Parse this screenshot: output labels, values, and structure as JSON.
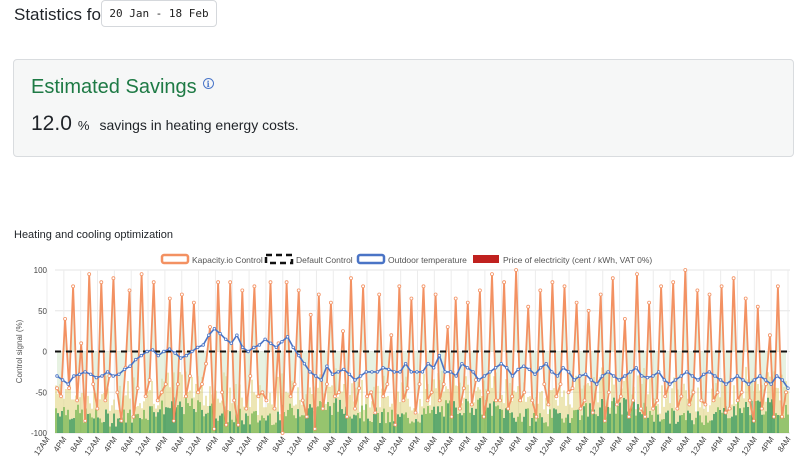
{
  "header": {
    "statistics_label": "Statistics for",
    "date_range": "20 Jan - 18 Feb"
  },
  "savings": {
    "title": "Estimated Savings",
    "info_icon": "info-circle-icon",
    "value": "12.0",
    "unit": "%",
    "text": "savings in heating energy costs."
  },
  "chart": {
    "section_title": "Heating and cooling optimization"
  },
  "colors": {
    "kapacity": "#f39162",
    "default": "#111111",
    "outdoor": "#4a74c6",
    "price": "#c0211f",
    "green_dark": "#1e8a3c",
    "green_mid": "#6dae3a",
    "yellow_band": "#d7c75a",
    "fill_zone": "#cfe6c6",
    "title_green": "#1e7a45"
  },
  "chart_data": {
    "type": "line",
    "ylabel": "Control signal (%)",
    "ylim": [
      -100,
      100
    ],
    "yticks": [
      100,
      50,
      0,
      -50,
      -100
    ],
    "x_ticks": [
      "12AM",
      "4PM",
      "8AM",
      "12AM",
      "4PM",
      "8AM",
      "12AM",
      "4PM",
      "8AM",
      "12AM",
      "4PM",
      "8AM",
      "12AM",
      "4PM",
      "8AM",
      "12AM",
      "4PM",
      "8AM",
      "12AM",
      "4PM",
      "8AM",
      "12AM",
      "4PM",
      "8AM",
      "12AM",
      "4PM",
      "8AM",
      "12AM",
      "4PM",
      "8AM",
      "12AM",
      "4PM",
      "8AM",
      "12AM",
      "4PM",
      "8AM",
      "12AM",
      "4PM",
      "8AM",
      "12AM",
      "4PM",
      "8AM",
      "12AM",
      "4PM",
      "8AM"
    ],
    "legend_position": "top",
    "grid": true,
    "series": [
      {
        "name": "Kapacity.io Control",
        "values": [
          -45,
          -55,
          40,
          -45,
          80,
          -60,
          10,
          -85,
          95,
          -40,
          -70,
          85,
          -60,
          -30,
          90,
          -50,
          -85,
          -20,
          75,
          -80,
          -45,
          95,
          -55,
          -35,
          85,
          -60,
          -50,
          -40,
          65,
          -85,
          -40,
          70,
          -55,
          -30,
          60,
          -50,
          -40,
          -15,
          30,
          -95,
          85,
          -50,
          -90,
          85,
          -60,
          -90,
          75,
          -70,
          -30,
          80,
          -55,
          -50,
          -60,
          85,
          -70,
          10,
          -100,
          85,
          -55,
          -40,
          75,
          -60,
          -80,
          45,
          -95,
          70,
          -70,
          -40,
          60,
          -55,
          -50,
          25,
          -80,
          90,
          -70,
          -45,
          80,
          -55,
          -50,
          -75,
          70,
          -55,
          -40,
          20,
          -90,
          80,
          -60,
          -45,
          65,
          -75,
          -40,
          80,
          -60,
          -50,
          70,
          -60,
          -40,
          30,
          -80,
          65,
          -70,
          -45,
          60,
          -65,
          -35,
          75,
          -80,
          -50,
          95,
          -60,
          -60,
          85,
          -70,
          -55,
          100,
          -60,
          -50,
          55,
          -60,
          -80,
          75,
          -40,
          -65,
          85,
          -55,
          -40,
          80,
          -50,
          -45,
          60,
          -70,
          -60,
          50,
          -75,
          -40,
          70,
          -85,
          -50,
          90,
          -65,
          -55,
          40,
          -80,
          -60,
          95,
          -70,
          -80,
          60,
          -70,
          -60,
          80,
          -55,
          -40,
          85,
          -70,
          -55,
          100,
          -65,
          -50,
          75,
          -60,
          -65,
          70,
          -60,
          -50,
          80,
          -75,
          -70,
          90,
          -60,
          -50,
          65,
          -60,
          -85,
          55,
          -70,
          -40,
          20,
          -80,
          80,
          -80,
          -50
        ]
      },
      {
        "name": "Default Control",
        "values": [
          0,
          0
        ]
      },
      {
        "name": "Outdoor temperature",
        "values": [
          -30,
          -35,
          -40,
          -30,
          -28,
          -25,
          -28,
          -32,
          -30,
          -25,
          -30,
          -28,
          -22,
          -18,
          -10,
          -5,
          0,
          2,
          -5,
          0,
          3,
          -2,
          -8,
          -5,
          0,
          5,
          8,
          20,
          28,
          22,
          15,
          10,
          20,
          5,
          0,
          5,
          8,
          15,
          10,
          5,
          12,
          18,
          5,
          -5,
          -15,
          -25,
          -30,
          -35,
          -18,
          -28,
          -25,
          -22,
          -28,
          -35,
          -30,
          -25,
          -25,
          -25,
          -20,
          -22,
          -25,
          -25,
          -15,
          -25,
          -25,
          -25,
          -15,
          -20,
          -5,
          -25,
          -25,
          -30,
          -15,
          -20,
          -25,
          -35,
          -30,
          -25,
          -20,
          -15,
          -20,
          -30,
          -22,
          -18,
          -22,
          -28,
          -20,
          -15,
          -25,
          -30,
          -20,
          -25,
          -35,
          -30,
          -28,
          -35,
          -40,
          -30,
          -25,
          -30,
          -35,
          -30,
          -25,
          -20,
          -30,
          -32,
          -30,
          -25,
          -35,
          -40,
          -35,
          -30,
          -25,
          -30,
          -35,
          -28,
          -25,
          -30,
          -35,
          -40,
          -35,
          -30,
          -35,
          -40,
          -35,
          -30,
          -35,
          -40,
          -30,
          -35,
          -45
        ]
      },
      {
        "name": "Price of electricity (cent / kWh, VAT 0%)",
        "values": []
      }
    ]
  }
}
